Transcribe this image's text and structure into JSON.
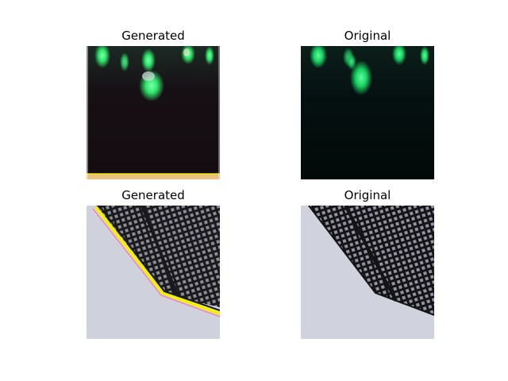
{
  "figure": {
    "panels": [
      {
        "title": "Generated",
        "subject": "green-fluorescent-cells"
      },
      {
        "title": "Original",
        "subject": "green-fluorescent-cells"
      },
      {
        "title": "Generated",
        "subject": "building-facade"
      },
      {
        "title": "Original",
        "subject": "building-facade"
      }
    ]
  },
  "colors": {
    "background": "#ffffff",
    "cell_green": "#2ee86a",
    "dark_bg": "#120c10",
    "original_dark_bg": "#020a08",
    "sky": "#cfd1dd",
    "facade": "#1a1a1c",
    "artifact_yellow": "#f4f000"
  }
}
